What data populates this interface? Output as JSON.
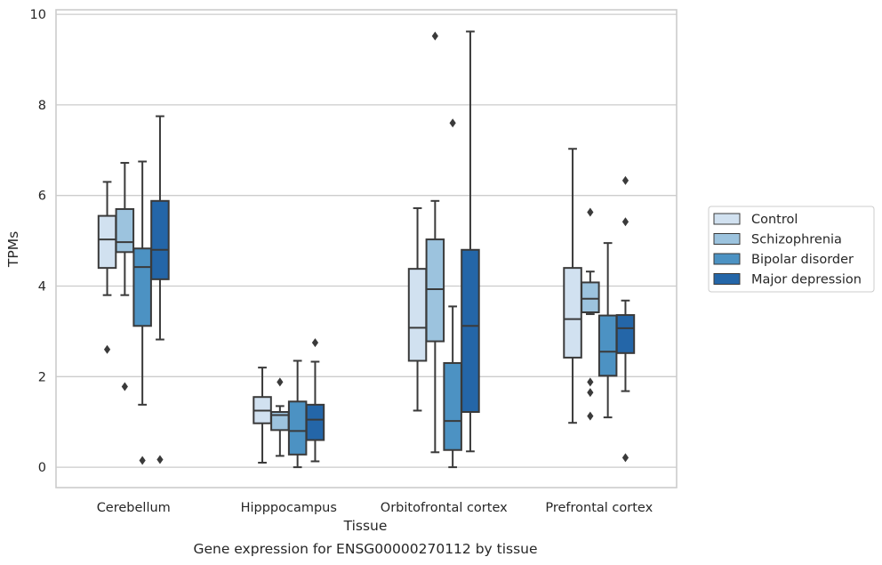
{
  "chart_data": {
    "type": "box",
    "title": "",
    "caption": "Gene expression for ENSG00000270112 by tissue",
    "xlabel": "Tissue",
    "ylabel": "TPMs",
    "ylim": [
      -0.45,
      10.1
    ],
    "yticks": [
      0,
      2,
      4,
      6,
      8,
      10
    ],
    "grid": "horizontal",
    "legend_position": "right",
    "categories": [
      "Cerebellum",
      "Hipppocampus",
      "Orbitofrontal cortex",
      "Prefrontal cortex"
    ],
    "series": [
      {
        "name": "Control",
        "color": "#d1e1f0",
        "boxes": [
          {
            "whislo": 3.8,
            "q1": 4.4,
            "med": 5.03,
            "q3": 5.55,
            "whishi": 6.3,
            "fliers": [
              2.6
            ]
          },
          {
            "whislo": 0.1,
            "q1": 0.97,
            "med": 1.25,
            "q3": 1.55,
            "whishi": 2.2,
            "fliers": []
          },
          {
            "whislo": 1.25,
            "q1": 2.35,
            "med": 3.08,
            "q3": 4.38,
            "whishi": 5.72,
            "fliers": []
          },
          {
            "whislo": 0.98,
            "q1": 2.42,
            "med": 3.27,
            "q3": 4.4,
            "whishi": 7.03,
            "fliers": []
          }
        ]
      },
      {
        "name": "Schizophrenia",
        "color": "#9cc3de",
        "boxes": [
          {
            "whislo": 3.8,
            "q1": 4.75,
            "med": 4.97,
            "q3": 5.7,
            "whishi": 6.72,
            "fliers": [
              1.78
            ]
          },
          {
            "whislo": 0.25,
            "q1": 0.82,
            "med": 1.15,
            "q3": 1.22,
            "whishi": 1.35,
            "fliers": [
              1.88
            ]
          },
          {
            "whislo": 0.33,
            "q1": 2.78,
            "med": 3.93,
            "q3": 5.03,
            "whishi": 5.88,
            "fliers": [
              9.52
            ]
          },
          {
            "whislo": 3.38,
            "q1": 3.42,
            "med": 3.72,
            "q3": 4.08,
            "whishi": 4.32,
            "fliers": [
              5.63,
              1.88,
              1.65,
              1.13
            ]
          }
        ]
      },
      {
        "name": "Bipolar disorder",
        "color": "#4c92c3",
        "boxes": [
          {
            "whislo": 1.38,
            "q1": 3.12,
            "med": 4.42,
            "q3": 4.83,
            "whishi": 6.75,
            "fliers": [
              0.15
            ]
          },
          {
            "whislo": 0.0,
            "q1": 0.28,
            "med": 0.8,
            "q3": 1.45,
            "whishi": 2.35,
            "fliers": []
          },
          {
            "whislo": 0.0,
            "q1": 0.38,
            "med": 1.02,
            "q3": 2.3,
            "whishi": 3.55,
            "fliers": [
              7.6
            ]
          },
          {
            "whislo": 1.1,
            "q1": 2.02,
            "med": 2.55,
            "q3": 3.35,
            "whishi": 4.95,
            "fliers": []
          }
        ]
      },
      {
        "name": "Major depression",
        "color": "#2466a8",
        "boxes": [
          {
            "whislo": 2.82,
            "q1": 4.15,
            "med": 4.8,
            "q3": 5.88,
            "whishi": 7.75,
            "fliers": [
              0.17
            ]
          },
          {
            "whislo": 0.13,
            "q1": 0.6,
            "med": 1.05,
            "q3": 1.38,
            "whishi": 2.33,
            "fliers": [
              2.75
            ]
          },
          {
            "whislo": 0.35,
            "q1": 1.22,
            "med": 3.12,
            "q3": 4.8,
            "whishi": 9.62,
            "fliers": []
          },
          {
            "whislo": 1.68,
            "q1": 2.52,
            "med": 3.07,
            "q3": 3.36,
            "whishi": 3.68,
            "fliers": [
              6.33,
              5.42,
              0.21
            ]
          }
        ]
      }
    ]
  }
}
